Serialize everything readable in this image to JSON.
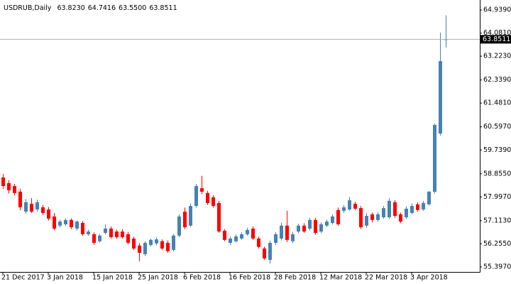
{
  "chart_data": {
    "type": "candlestick",
    "title": "USDRUB,Daily",
    "header_values": [
      "63.8230",
      "64.7416",
      "63.5500",
      "63.8511"
    ],
    "up_color": "#4682b4",
    "down_color": "#ff0000",
    "ylim": [
      55.21,
      65.31
    ],
    "yticks": [
      {
        "value": 64.939,
        "label": "64.9390"
      },
      {
        "value": 64.081,
        "label": "64.0810"
      },
      {
        "value": 63.223,
        "label": "63.2230"
      },
      {
        "value": 62.339,
        "label": "62.3390"
      },
      {
        "value": 61.481,
        "label": "61.4810"
      },
      {
        "value": 60.597,
        "label": "60.5970"
      },
      {
        "value": 59.739,
        "label": "59.7390"
      },
      {
        "value": 58.855,
        "label": "58.8550"
      },
      {
        "value": 57.997,
        "label": "57.9970"
      },
      {
        "value": 57.113,
        "label": "57.1130"
      },
      {
        "value": 56.255,
        "label": "56.2550"
      },
      {
        "value": 55.397,
        "label": "55.3970"
      }
    ],
    "last_price": {
      "value": 63.8511,
      "label": "63.8511"
    },
    "categories": [
      "21 Dec 2017",
      null,
      null,
      null,
      null,
      null,
      null,
      null,
      "3 Jan 2018",
      null,
      null,
      null,
      null,
      null,
      null,
      null,
      "15 Jan 2018",
      null,
      null,
      null,
      null,
      null,
      null,
      null,
      "25 Jan 2018",
      null,
      null,
      null,
      null,
      null,
      null,
      null,
      "6 Feb 2018",
      null,
      null,
      null,
      null,
      null,
      null,
      null,
      "16 Feb 2018",
      null,
      null,
      null,
      null,
      null,
      null,
      null,
      "28 Feb 2018",
      null,
      null,
      null,
      null,
      null,
      null,
      null,
      "12 Mar 2018",
      null,
      null,
      null,
      null,
      null,
      null,
      null,
      "22 Mar 2018",
      null,
      null,
      null,
      null,
      null,
      null,
      null,
      "3 Apr 2018",
      null,
      null,
      null,
      null,
      null,
      null
    ],
    "open": [
      58.72,
      58.51,
      58.4,
      58.19,
      57.45,
      57.74,
      57.53,
      57.61,
      57.53,
      57.27,
      56.93,
      56.98,
      57.14,
      56.82,
      57.03,
      56.61,
      56.61,
      56.35,
      56.66,
      56.82,
      56.71,
      56.71,
      56.61,
      56.45,
      56.19,
      55.87,
      56.21,
      56.27,
      56.35,
      56.29,
      56.03,
      56.56,
      57.45,
      56.93,
      57.66,
      58.32,
      58.14,
      57.98,
      57.77,
      56.74,
      56.29,
      56.35,
      56.45,
      56.61,
      56.82,
      56.45,
      56.08,
      55.66,
      56.29,
      56.45,
      56.93,
      56.35,
      56.71,
      56.93,
      56.82,
      57.14,
      56.71,
      56.93,
      57.03,
      57.51,
      57.48,
      57.53,
      57.74,
      57.58,
      56.93,
      57.35,
      57.14,
      57.24,
      57.24,
      57.8,
      57.35,
      57.24,
      57.4,
      57.72,
      57.53,
      57.72,
      58.19,
      60.35,
      63.823
    ],
    "high": [
      58.85,
      58.62,
      58.48,
      58.3,
      57.92,
      57.95,
      57.9,
      57.7,
      57.62,
      57.4,
      57.15,
      57.2,
      57.2,
      57.12,
      57.1,
      56.78,
      56.68,
      56.62,
      56.98,
      56.9,
      56.78,
      56.8,
      56.7,
      56.52,
      56.28,
      56.35,
      56.45,
      56.5,
      56.42,
      56.38,
      56.62,
      57.35,
      57.6,
      57.75,
      58.48,
      58.78,
      58.22,
      58.06,
      57.85,
      56.8,
      56.52,
      56.6,
      56.68,
      56.85,
      56.9,
      56.52,
      56.15,
      56.38,
      56.68,
      57.05,
      57.48,
      56.7,
      57.0,
      57.02,
      57.22,
      57.22,
      57.05,
      57.15,
      57.35,
      57.6,
      57.7,
      58.0,
      57.82,
      57.66,
      57.4,
      57.42,
      57.42,
      57.66,
      57.95,
      57.88,
      57.42,
      57.65,
      57.75,
      57.8,
      57.85,
      58.22,
      60.72,
      64.1,
      64.7416
    ],
    "low": [
      58.3,
      58.12,
      58.05,
      57.5,
      57.38,
      57.4,
      57.45,
      57.32,
      57.12,
      56.76,
      56.86,
      56.92,
      56.8,
      56.75,
      56.55,
      56.55,
      56.22,
      56.3,
      56.6,
      56.45,
      56.44,
      56.45,
      56.24,
      56.02,
      55.61,
      55.8,
      56.15,
      56.2,
      56.02,
      55.92,
      55.97,
      56.5,
      56.8,
      56.88,
      57.6,
      58.1,
      57.7,
      57.6,
      56.66,
      56.35,
      56.2,
      56.3,
      56.4,
      56.56,
      56.4,
      56.08,
      55.66,
      55.52,
      56.22,
      56.38,
      56.32,
      56.28,
      56.65,
      56.66,
      56.75,
      56.6,
      56.65,
      56.88,
      56.97,
      56.92,
      57.4,
      57.48,
      57.5,
      56.8,
      56.85,
      57.05,
      57.08,
      57.18,
      57.18,
      57.22,
      57.02,
      57.18,
      57.35,
      57.45,
      57.48,
      57.68,
      58.12,
      60.28,
      63.55
    ],
    "close": [
      58.4,
      58.24,
      58.14,
      57.61,
      57.8,
      57.45,
      57.8,
      57.4,
      57.19,
      56.82,
      57.08,
      57.14,
      56.87,
      57.08,
      56.61,
      56.71,
      56.29,
      56.56,
      56.82,
      56.5,
      56.5,
      56.5,
      56.29,
      56.08,
      55.92,
      56.29,
      56.4,
      56.42,
      56.08,
      55.98,
      56.56,
      57.27,
      56.87,
      57.66,
      58.4,
      58.19,
      57.77,
      57.66,
      56.71,
      56.4,
      56.45,
      56.53,
      56.61,
      56.77,
      56.45,
      56.14,
      55.71,
      56.29,
      56.61,
      56.93,
      56.4,
      56.61,
      56.93,
      56.71,
      57.14,
      56.66,
      56.98,
      57.08,
      57.27,
      56.98,
      57.61,
      57.87,
      57.56,
      56.87,
      57.29,
      57.14,
      57.35,
      57.58,
      57.85,
      57.29,
      57.08,
      57.56,
      57.66,
      57.51,
      57.77,
      58.19,
      60.67,
      63.04,
      63.8511
    ]
  }
}
